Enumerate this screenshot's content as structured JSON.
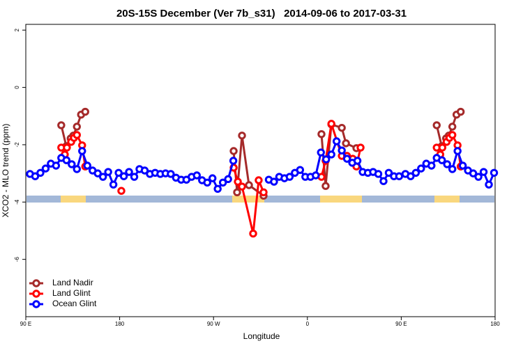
{
  "chart_data": {
    "type": "line",
    "title": "20S-15S December (Ver 7b_s31)   2014-09-06 to 2017-03-31",
    "xlabel": "Longitude",
    "ylabel": "XCO2 - MLO trend (ppm)",
    "xlim": [
      90,
      540
    ],
    "ylim": [
      -8,
      2.2
    ],
    "xticks": [
      {
        "value": 90,
        "label": "90 E"
      },
      180,
      {
        "value": 270,
        "label": "90 W"
      },
      {
        "value": 360,
        "label": "0"
      },
      {
        "value": 450,
        "label": "90 E"
      },
      {
        "value": 540,
        "label": "180"
      }
    ],
    "yticks": [
      -6,
      -4,
      -2,
      0,
      2
    ],
    "legend": "bottom-left",
    "series": [
      {
        "name": "Land Nadir",
        "color": "#a52a2a",
        "x": [
          124,
          128.8,
          133,
          135.6,
          139,
          143,
          147,
          200,
          289.3,
          292.6,
          297.3,
          304,
          318,
          340,
          373.5,
          377.5,
          383,
          393,
          397,
          407,
          450,
          484,
          488.8,
          493,
          495.6,
          499,
          503,
          507
        ],
        "values": [
          -1.32,
          -2.05,
          -1.78,
          -1.68,
          -1.37,
          -0.95,
          -0.85,
          null,
          -2.22,
          -3.66,
          -1.68,
          -3.41,
          -3.78,
          null,
          -1.63,
          -3.44,
          -1.29,
          -1.41,
          -1.95,
          -2.12,
          null,
          -1.32,
          -2.05,
          -1.78,
          -1.68,
          -1.37,
          -0.95,
          -0.85
        ]
      },
      {
        "name": "Land Glint",
        "color": "#ff0000",
        "x": [
          124,
          127.4,
          129.4,
          133.5,
          136.2,
          139,
          144,
          147,
          160,
          181.6,
          230,
          289.3,
          293.3,
          297.3,
          308,
          313.3,
          318,
          340,
          373.5,
          377.5,
          383,
          393,
          398,
          403.5,
          407,
          411,
          450,
          484,
          487.4,
          489.4,
          493.5,
          496.2,
          499,
          504,
          507
        ],
        "values": [
          -2.1,
          -2.34,
          -2.1,
          -1.9,
          -1.76,
          -1.66,
          -2.02,
          -2.76,
          null,
          -3.61,
          null,
          -2.8,
          -3.29,
          -3.46,
          -5.1,
          -3.24,
          -3.66,
          null,
          -3.12,
          -2.56,
          -1.27,
          -2.39,
          -2.39,
          -2.49,
          -2.76,
          -2.1,
          null,
          -2.1,
          -2.34,
          -2.1,
          -1.9,
          -1.76,
          -1.66,
          -2.02,
          -2.76
        ]
      },
      {
        "name": "Ocean Glint",
        "color": "#0000ff",
        "x": [
          94,
          99,
          104,
          109,
          114,
          119,
          124,
          129,
          134,
          139,
          144,
          149,
          154,
          159,
          164,
          169,
          174,
          179,
          184,
          189,
          194,
          199,
          204,
          209,
          214,
          219,
          224,
          229,
          234,
          239,
          244,
          249,
          254,
          259,
          264,
          269,
          274,
          279,
          284,
          289,
          305,
          323,
          328,
          333,
          338,
          343,
          348,
          353,
          358,
          363,
          368,
          373,
          378,
          383,
          388,
          393,
          398,
          403,
          408,
          413,
          418,
          423,
          428,
          433,
          438,
          443,
          448,
          454,
          459,
          464,
          469,
          474,
          479,
          484,
          489,
          494,
          499,
          504,
          509,
          514,
          519,
          524,
          529,
          534,
          539
        ],
        "values": [
          -3.02,
          -3.1,
          -2.98,
          -2.83,
          -2.66,
          -2.73,
          -2.46,
          -2.54,
          -2.68,
          -2.85,
          -2.22,
          -2.73,
          -2.9,
          -3.0,
          -3.12,
          -2.95,
          -3.39,
          -2.98,
          -3.1,
          -2.95,
          -3.12,
          -2.85,
          -2.9,
          -3.02,
          -2.98,
          -3.02,
          -3.0,
          -3.02,
          -3.15,
          -3.22,
          -3.22,
          -3.12,
          -3.07,
          -3.24,
          -3.32,
          -3.17,
          -3.54,
          -3.32,
          -3.2,
          -2.56,
          null,
          -3.22,
          -3.29,
          -3.12,
          -3.17,
          -3.12,
          -2.98,
          -2.88,
          -3.12,
          -3.12,
          -3.07,
          -2.27,
          -2.51,
          -2.34,
          -1.88,
          -2.2,
          -2.49,
          -2.63,
          -2.56,
          -2.95,
          -2.98,
          -2.95,
          -3.02,
          -3.27,
          -2.98,
          -3.1,
          -3.1,
          -3.02,
          -3.1,
          -2.98,
          -2.83,
          -2.66,
          -2.73,
          -2.46,
          -2.54,
          -2.68,
          -2.85,
          -2.22,
          -2.73,
          -2.9,
          -3.0,
          -3.12,
          -2.95,
          -3.39,
          -2.98
        ]
      }
    ]
  }
}
